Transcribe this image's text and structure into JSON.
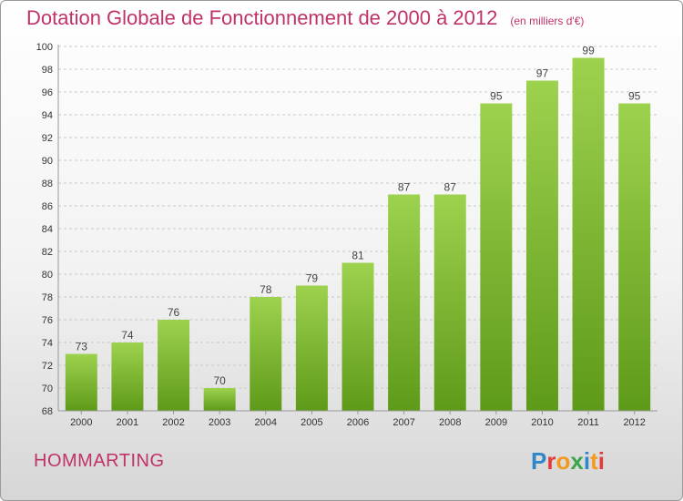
{
  "header": {
    "title": "Dotation Globale de Fonctionnement de 2000 à 2012",
    "unit": "(en milliers d'€)"
  },
  "footer": {
    "commune": "HOMMARTING",
    "logo_text": "Proxiti"
  },
  "colors": {
    "title": "#c0326a",
    "bar_top": "#9dd24e",
    "bar_bottom": "#5e9a19",
    "grid": "#c8c8c8"
  },
  "chart_data": {
    "type": "bar",
    "title": "Dotation Globale de Fonctionnement de 2000 à 2012",
    "subtitle": "(en milliers d'€)",
    "categories": [
      "2000",
      "2001",
      "2002",
      "2003",
      "2004",
      "2005",
      "2006",
      "2007",
      "2008",
      "2009",
      "2010",
      "2011",
      "2012"
    ],
    "values": [
      73,
      74,
      76,
      70,
      78,
      79,
      81,
      87,
      87,
      95,
      97,
      99,
      95
    ],
    "ylim": [
      68,
      100
    ],
    "yticks": [
      68,
      70,
      72,
      74,
      76,
      78,
      80,
      82,
      84,
      86,
      88,
      90,
      92,
      94,
      96,
      98,
      100
    ],
    "grid": true,
    "data_labels": true
  }
}
